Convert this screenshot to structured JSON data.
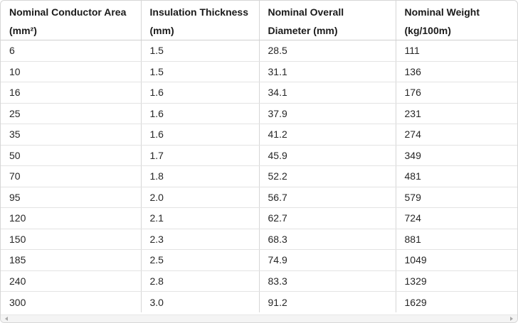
{
  "table": {
    "headers": [
      {
        "line1": "Nominal Conductor Area",
        "line2": "(mm²)"
      },
      {
        "line1": "Insulation Thickness",
        "line2": "(mm)"
      },
      {
        "line1": "Nominal Overall",
        "line2": "Diameter (mm)"
      },
      {
        "line1": "Nominal Weight",
        "line2": "(kg/100m)"
      }
    ],
    "rows": [
      [
        "6",
        "1.5",
        "28.5",
        "111"
      ],
      [
        "10",
        "1.5",
        "31.1",
        "136"
      ],
      [
        "16",
        "1.6",
        "34.1",
        "176"
      ],
      [
        "25",
        "1.6",
        "37.9",
        "231"
      ],
      [
        "35",
        "1.6",
        "41.2",
        "274"
      ],
      [
        "50",
        "1.7",
        "45.9",
        "349"
      ],
      [
        "70",
        "1.8",
        "52.2",
        "481"
      ],
      [
        "95",
        "2.0",
        "56.7",
        "579"
      ],
      [
        "120",
        "2.1",
        "62.7",
        "724"
      ],
      [
        "150",
        "2.3",
        "68.3",
        "881"
      ],
      [
        "185",
        "2.5",
        "74.9",
        "1049"
      ],
      [
        "240",
        "2.8",
        "83.3",
        "1329"
      ],
      [
        "300",
        "3.0",
        "91.2",
        "1629"
      ]
    ]
  },
  "scrollbar": {
    "left_icon": "arrow-left-icon",
    "right_icon": "arrow-right-icon"
  }
}
